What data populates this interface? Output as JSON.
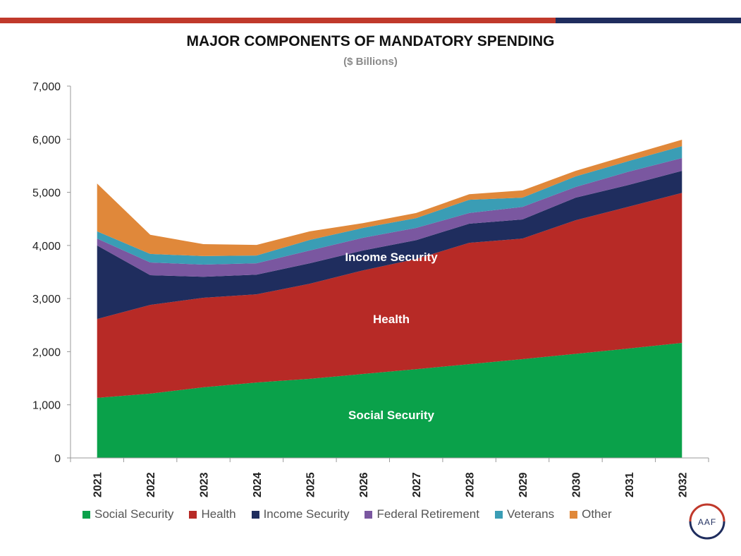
{
  "chart_data": {
    "type": "area",
    "stacked": true,
    "title": "MAJOR COMPONENTS OF MANDATORY SPENDING",
    "subtitle": "($ Billions)",
    "xlabel": "",
    "ylabel": "",
    "ylim": [
      0,
      7000
    ],
    "yticks": [
      "0",
      "1,000",
      "2,000",
      "3,000",
      "4,000",
      "5,000",
      "6,000",
      "7,000"
    ],
    "grid": false,
    "legend_position": "bottom",
    "categories": [
      "2021",
      "2022",
      "2023",
      "2024",
      "2025",
      "2026",
      "2027",
      "2028",
      "2029",
      "2030",
      "2031",
      "2032"
    ],
    "series": [
      {
        "name": "Social Security",
        "color": "#0aa14a",
        "values": [
          1130,
          1210,
          1330,
          1420,
          1490,
          1580,
          1670,
          1765,
          1860,
          1960,
          2060,
          2165
        ]
      },
      {
        "name": "Health",
        "color": "#b72a26",
        "values": [
          1485,
          1670,
          1685,
          1660,
          1790,
          1950,
          2075,
          2285,
          2270,
          2515,
          2670,
          2825
        ]
      },
      {
        "name": "Income Security",
        "color": "#1f2d5e",
        "values": [
          1385,
          560,
          395,
          370,
          385,
          375,
          355,
          360,
          360,
          425,
          410,
          415
        ]
      },
      {
        "name": "Federal Retirement",
        "color": "#7a57a0",
        "values": [
          130,
          240,
          230,
          215,
          240,
          240,
          230,
          200,
          235,
          200,
          250,
          240
        ]
      },
      {
        "name": "Veterans",
        "color": "#3a9db5",
        "values": [
          135,
          160,
          160,
          145,
          200,
          185,
          185,
          250,
          175,
          200,
          200,
          225
        ]
      },
      {
        "name": "Other",
        "color": "#e0883a",
        "values": [
          900,
          360,
          225,
          200,
          160,
          90,
          95,
          105,
          135,
          105,
          110,
          120
        ]
      }
    ],
    "annotations": [
      "Income Security",
      "Health",
      "Social Security"
    ]
  },
  "logo": {
    "text": "AAF"
  }
}
